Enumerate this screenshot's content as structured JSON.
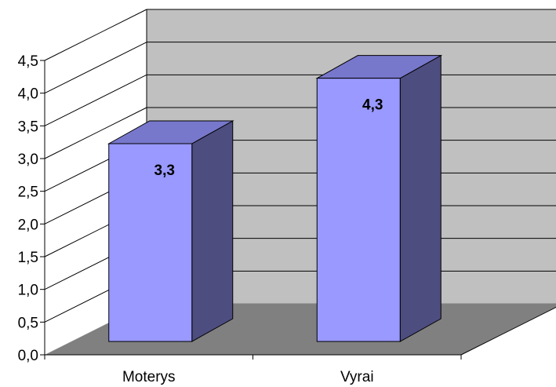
{
  "chart_data": {
    "type": "bar",
    "style": "3d-column",
    "categories": [
      "Moterys",
      "Vyrai"
    ],
    "values": [
      3.3,
      4.3
    ],
    "data_labels": [
      "3,3",
      "4,3"
    ],
    "ylim": [
      0,
      4.5
    ],
    "y_ticks": [
      "0,0",
      "0,5",
      "1,0",
      "1,5",
      "2,0",
      "2,5",
      "3,0",
      "3,5",
      "4,0",
      "4,5"
    ],
    "grid": true,
    "legend": "none",
    "colors": {
      "bar_front": "#9999ff",
      "bar_top": "#7777cc",
      "bar_side": "#4d4d80",
      "back_wall": "#c0c0c0",
      "floor": "#808080"
    }
  }
}
